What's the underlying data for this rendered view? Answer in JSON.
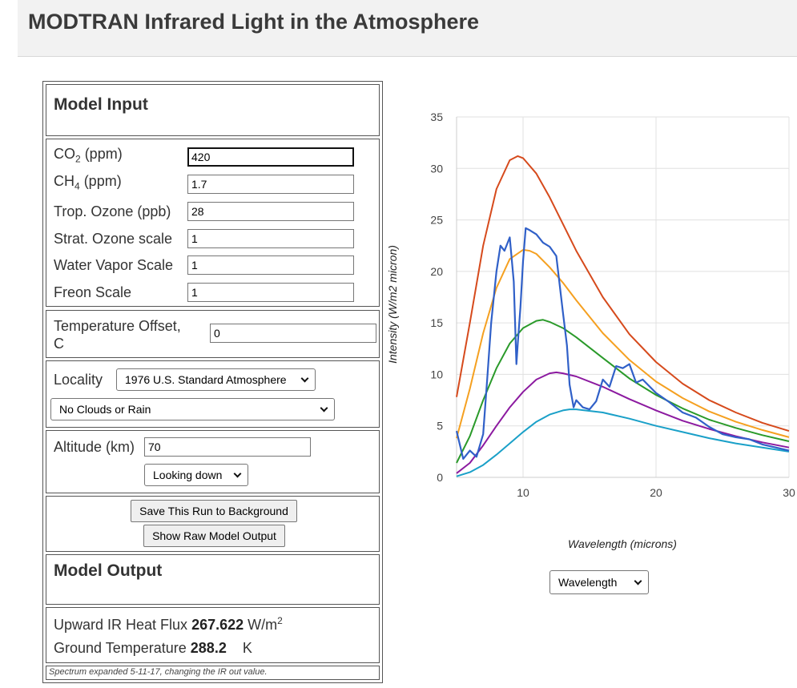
{
  "header": {
    "title": "MODTRAN Infrared Light in the Atmosphere"
  },
  "model_input": {
    "title": "Model Input",
    "co2": {
      "label_main": "CO",
      "label_sub": "2",
      "label_tail": " (ppm)",
      "value": "420"
    },
    "ch4": {
      "label_main": "CH",
      "label_sub": "4",
      "label_tail": " (ppm)",
      "value": "1.7"
    },
    "trop_ozone": {
      "label": "Trop. Ozone (ppb)",
      "value": "28"
    },
    "strat_ozone": {
      "label": "Strat. Ozone scale",
      "value": "1"
    },
    "water_vapor": {
      "label": "Water Vapor Scale",
      "value": "1"
    },
    "freon": {
      "label": "Freon Scale",
      "value": "1"
    },
    "temp_offset": {
      "label_line1": "Temperature Offset,",
      "label_line2": "C",
      "value": "0"
    },
    "locality": {
      "label": "Locality",
      "selected": "1976 U.S. Standard Atmosphere"
    },
    "clouds": {
      "selected": "No Clouds or Rain"
    },
    "altitude": {
      "label": "Altitude (km)",
      "value": "70"
    },
    "direction": {
      "selected": "Looking down"
    },
    "save_button": "Save This Run to Background",
    "raw_button": "Show Raw Model Output"
  },
  "model_output": {
    "title": "Model Output",
    "flux_label": "Upward IR Heat Flux",
    "flux_value": "267.622",
    "flux_unit_main": "W/m",
    "flux_unit_sup": "2",
    "temp_label": "Ground Temperature",
    "temp_value": "288.2",
    "temp_unit": "K",
    "note": "Spectrum expanded 5-11-17, changing the IR out value."
  },
  "x_axis_select": {
    "selected": "Wavelength"
  },
  "colors": {
    "spectrum": "#3060c8",
    "curve_1": "#d64a1c",
    "curve_2": "#f5a020",
    "curve_3": "#2a9a2a",
    "curve_4": "#8c1aa0",
    "curve_5": "#1aa0c8"
  },
  "chart_data": {
    "type": "line",
    "xlabel": "Wavelength (microns)",
    "ylabel": "Intensity (W/m2 micron)",
    "xlim": [
      5,
      30
    ],
    "ylim": [
      0,
      35
    ],
    "x_ticks": [
      10,
      20,
      30
    ],
    "y_ticks": [
      0,
      5,
      10,
      15,
      20,
      25,
      30,
      35
    ],
    "grid": true,
    "series": [
      {
        "color": "#d64a1c",
        "x": [
          5,
          6,
          7,
          8,
          9,
          9.6,
          10,
          11,
          12,
          13,
          14,
          16,
          18,
          20,
          22,
          24,
          26,
          28,
          30
        ],
        "y": [
          7.8,
          15.0,
          22.5,
          28.0,
          30.8,
          31.2,
          31.0,
          29.5,
          27.2,
          24.6,
          22.0,
          17.5,
          13.9,
          11.2,
          9.1,
          7.5,
          6.3,
          5.3,
          4.5
        ]
      },
      {
        "color": "#f5a020",
        "x": [
          5,
          6,
          7,
          8,
          9,
          10,
          10.5,
          11,
          12,
          13,
          14,
          16,
          18,
          20,
          22,
          24,
          26,
          28,
          30
        ],
        "y": [
          3.8,
          8.6,
          14.0,
          18.4,
          21.2,
          22.1,
          22.0,
          21.7,
          20.4,
          18.9,
          17.2,
          14.0,
          11.4,
          9.3,
          7.7,
          6.4,
          5.4,
          4.6,
          3.9
        ]
      },
      {
        "color": "#2a9a2a",
        "x": [
          5,
          6,
          7,
          8,
          9,
          10,
          11,
          11.5,
          12,
          13,
          14,
          16,
          18,
          20,
          22,
          24,
          26,
          28,
          30
        ],
        "y": [
          1.4,
          4.0,
          7.5,
          10.6,
          13.0,
          14.5,
          15.2,
          15.3,
          15.1,
          14.5,
          13.6,
          11.6,
          9.6,
          8.0,
          6.7,
          5.6,
          4.8,
          4.1,
          3.5
        ]
      },
      {
        "color": "#8c1aa0",
        "x": [
          5,
          6,
          7,
          8,
          9,
          10,
          11,
          12,
          12.5,
          13,
          14,
          16,
          18,
          20,
          22,
          24,
          26,
          28,
          30
        ],
        "y": [
          0.4,
          1.4,
          3.1,
          5.0,
          6.8,
          8.3,
          9.5,
          10.1,
          10.2,
          10.1,
          9.8,
          8.8,
          7.6,
          6.5,
          5.5,
          4.7,
          4.0,
          3.4,
          2.9
        ]
      },
      {
        "color": "#1aa0c8",
        "x": [
          5,
          6,
          7,
          8,
          9,
          10,
          11,
          12,
          13,
          13.5,
          14,
          16,
          18,
          20,
          22,
          24,
          26,
          28,
          30
        ],
        "y": [
          0.1,
          0.5,
          1.2,
          2.2,
          3.3,
          4.4,
          5.4,
          6.1,
          6.5,
          6.6,
          6.6,
          6.3,
          5.7,
          5.0,
          4.4,
          3.8,
          3.3,
          2.9,
          2.5
        ]
      },
      {
        "color": "#3060c8",
        "x": [
          5,
          5.5,
          6,
          6.5,
          7,
          7.3,
          7.6,
          8,
          8.3,
          8.6,
          9,
          9.3,
          9.5,
          9.6,
          9.8,
          10,
          10.2,
          10.5,
          11,
          11.5,
          12,
          12.5,
          13,
          13.3,
          13.5,
          13.8,
          14,
          14.5,
          15,
          15.5,
          16,
          16.5,
          17,
          17.5,
          18,
          18.5,
          19,
          20,
          21,
          22,
          23,
          24,
          25,
          26,
          27,
          28,
          29,
          30
        ],
        "y": [
          4.5,
          1.8,
          2.6,
          2.0,
          4.2,
          9.5,
          15.0,
          20.0,
          22.5,
          22.0,
          23.3,
          19.0,
          11.0,
          13.0,
          16.5,
          21.0,
          24.2,
          24.0,
          23.6,
          22.8,
          22.4,
          21.5,
          16.0,
          12.8,
          9.0,
          6.8,
          7.5,
          6.8,
          6.6,
          7.4,
          9.5,
          8.8,
          10.8,
          10.6,
          11.0,
          9.2,
          9.5,
          8.2,
          7.3,
          6.3,
          5.8,
          4.9,
          4.2,
          3.9,
          3.7,
          3.2,
          2.9,
          2.6
        ]
      }
    ]
  }
}
